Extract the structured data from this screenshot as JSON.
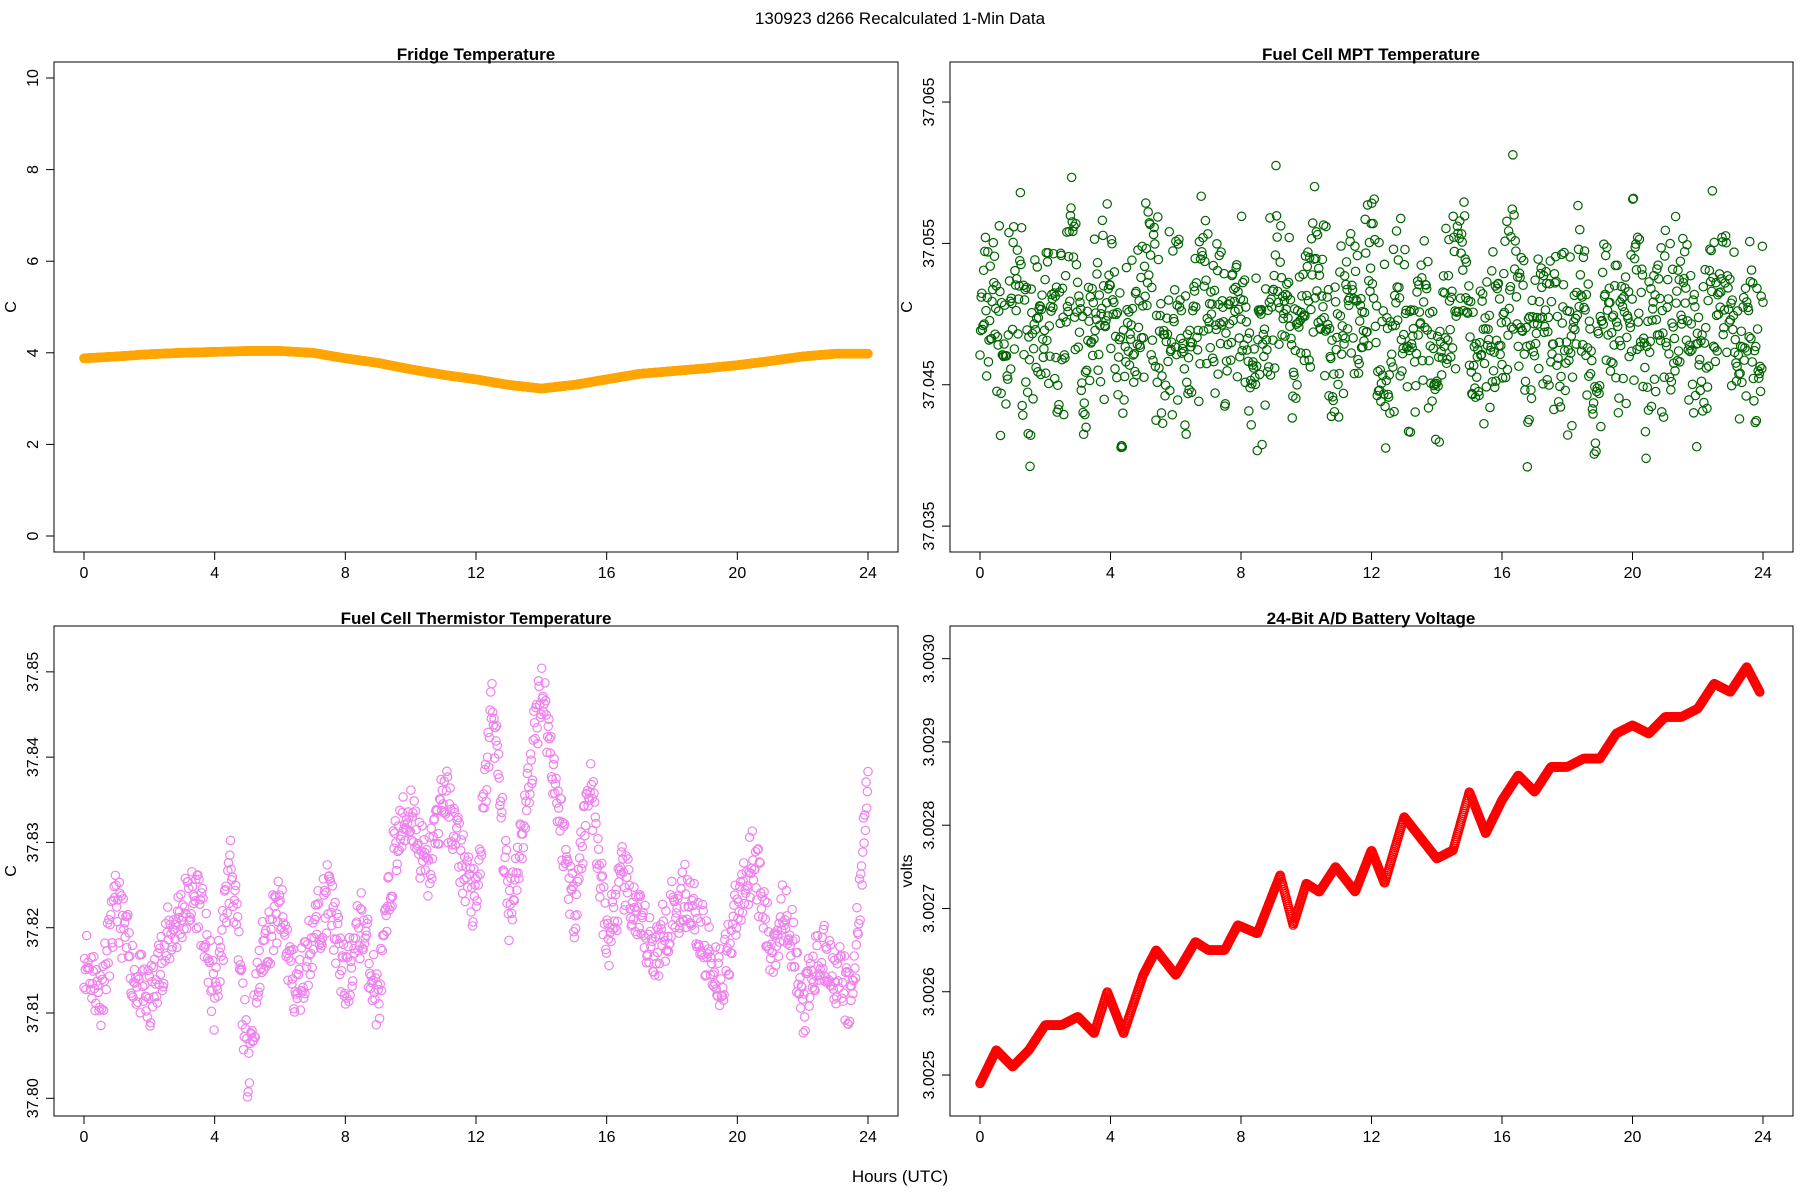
{
  "figure": {
    "main_title": "130923   d266   Recalculated 1-Min Data",
    "xlabel": "Hours (UTC)"
  },
  "chart_data": [
    {
      "type": "scatter",
      "title": "Fridge Temperature",
      "ylabel": "C",
      "xlabel": "",
      "color": "#ffa500",
      "marker": "circle-open",
      "xlim": [
        0,
        24
      ],
      "ylim": [
        0,
        10
      ],
      "x_ticks": [
        0,
        4,
        8,
        12,
        16,
        20,
        24
      ],
      "x_tick_labels": [
        "0",
        "4",
        "8",
        "12",
        "16",
        "20",
        "24"
      ],
      "y_ticks": [
        0,
        2,
        4,
        6,
        8,
        10
      ],
      "y_tick_labels": [
        "0",
        "2",
        "4",
        "6",
        "8",
        "10"
      ],
      "series": [
        {
          "x": [
            0,
            1,
            2,
            3,
            4,
            5,
            6,
            7,
            8,
            9,
            10,
            11,
            12,
            13,
            14,
            15,
            16,
            17,
            18,
            19,
            20,
            21,
            22,
            23,
            24
          ],
          "y": [
            3.88,
            3.92,
            3.97,
            4.0,
            4.02,
            4.04,
            4.04,
            4.0,
            3.88,
            3.78,
            3.64,
            3.52,
            3.42,
            3.3,
            3.22,
            3.3,
            3.42,
            3.54,
            3.6,
            3.66,
            3.73,
            3.82,
            3.92,
            3.98,
            3.98
          ]
        }
      ]
    },
    {
      "type": "scatter",
      "title": "Fuel Cell MPT Temperature",
      "ylabel": "C",
      "xlabel": "",
      "color": "#006400",
      "marker": "circle-open",
      "xlim": [
        0,
        24
      ],
      "ylim": [
        37.0343,
        37.0667
      ],
      "x_ticks": [
        0,
        4,
        8,
        12,
        16,
        20,
        24
      ],
      "x_tick_labels": [
        "0",
        "4",
        "8",
        "12",
        "16",
        "20",
        "24"
      ],
      "y_ticks": [
        37.035,
        37.045,
        37.055,
        37.065
      ],
      "y_tick_labels": [
        "37.035",
        "37.045",
        "37.055",
        "37.065"
      ],
      "series": [
        {
          "x": [
            0.0,
            0.4,
            0.8,
            1.2,
            1.6,
            2.0,
            2.4,
            2.8,
            3.2,
            3.6,
            4.0,
            4.4,
            4.8,
            5.2,
            5.6,
            6.0,
            6.4,
            6.8,
            7.2,
            7.6,
            8.0,
            8.4,
            8.8,
            9.2,
            9.6,
            10.0,
            10.4,
            10.8,
            11.2,
            11.6,
            12.0,
            12.4,
            12.8,
            13.2,
            13.6,
            14.0,
            14.4,
            14.8,
            15.2,
            15.6,
            16.0,
            16.4,
            16.8,
            17.2,
            17.6,
            18.0,
            18.4,
            18.8,
            19.2,
            19.6,
            20.0,
            20.4,
            20.8,
            21.2,
            21.6,
            22.0,
            22.4,
            22.8,
            23.2,
            23.6,
            24.0
          ],
          "y": [
            37.0489,
            37.0512,
            37.0467,
            37.0531,
            37.0452,
            37.0505,
            37.0478,
            37.0543,
            37.0461,
            37.0497,
            37.0522,
            37.0448,
            37.0509,
            37.0536,
            37.0472,
            37.0501,
            37.0458,
            37.0527,
            37.0494,
            37.0481,
            37.0515,
            37.0442,
            37.0507,
            37.0533,
            37.0469,
            37.0498,
            37.0524,
            37.0455,
            37.0511,
            37.0486,
            37.0539,
            37.0463,
            37.0502,
            37.0477,
            37.0519,
            37.0451,
            37.0495,
            37.0528,
            37.0466,
            37.0504,
            37.0482,
            37.0537,
            37.0459,
            37.0513,
            37.0491,
            37.0474,
            37.0526,
            37.0449,
            37.0508,
            37.0485,
            37.0532,
            37.0464,
            37.0499,
            37.0476,
            37.0518,
            37.0457,
            37.0503,
            37.0529,
            37.0471,
            37.0492,
            37.0483
          ]
        }
      ]
    },
    {
      "type": "scatter",
      "title": "Fuel Cell Thermistor Temperature",
      "ylabel": "C",
      "xlabel": "",
      "color": "#ee82ee",
      "marker": "circle-open",
      "xlim": [
        0,
        24
      ],
      "ylim": [
        37.7998,
        37.8535
      ],
      "x_ticks": [
        0,
        4,
        8,
        12,
        16,
        20,
        24
      ],
      "x_tick_labels": [
        "0",
        "4",
        "8",
        "12",
        "16",
        "20",
        "24"
      ],
      "y_ticks": [
        37.8,
        37.81,
        37.82,
        37.83,
        37.84,
        37.85
      ],
      "y_tick_labels": [
        "37.80",
        "37.81",
        "37.82",
        "37.83",
        "37.84",
        "37.85"
      ],
      "series": [
        {
          "x": [
            0.0,
            0.5,
            1.0,
            1.5,
            2.0,
            2.5,
            3.0,
            3.5,
            4.0,
            4.5,
            5.0,
            5.5,
            6.0,
            6.5,
            7.0,
            7.5,
            8.0,
            8.5,
            9.0,
            9.5,
            10.0,
            10.5,
            11.0,
            11.5,
            12.0,
            12.5,
            13.0,
            13.5,
            14.0,
            14.5,
            15.0,
            15.5,
            16.0,
            16.5,
            17.0,
            17.5,
            18.0,
            18.5,
            19.0,
            19.5,
            20.0,
            20.5,
            21.0,
            21.5,
            22.0,
            22.5,
            23.0,
            23.5,
            24.0
          ],
          "y": [
            37.817,
            37.812,
            37.823,
            37.815,
            37.811,
            37.818,
            37.822,
            37.824,
            37.811,
            37.828,
            37.804,
            37.818,
            37.822,
            37.812,
            37.819,
            37.824,
            37.813,
            37.821,
            37.811,
            37.829,
            37.834,
            37.826,
            37.836,
            37.829,
            37.822,
            37.847,
            37.822,
            37.833,
            37.849,
            37.835,
            37.822,
            37.838,
            37.818,
            37.826,
            37.82,
            37.817,
            37.822,
            37.824,
            37.818,
            37.814,
            37.822,
            37.829,
            37.817,
            37.823,
            37.81,
            37.817,
            37.815,
            37.811,
            37.837
          ]
        }
      ]
    },
    {
      "type": "scatter",
      "title": "24-Bit A/D Battery Voltage",
      "ylabel": "volts",
      "xlabel": "",
      "color": "#ff0000",
      "marker": "circle-open",
      "xlim": [
        0,
        24
      ],
      "ylim": [
        3.00247,
        3.00302
      ],
      "x_ticks": [
        0,
        4,
        8,
        12,
        16,
        20,
        24
      ],
      "x_tick_labels": [
        "0",
        "4",
        "8",
        "12",
        "16",
        "20",
        "24"
      ],
      "y_ticks": [
        3.0025,
        3.0026,
        3.0027,
        3.0028,
        3.0029,
        3.003
      ],
      "y_tick_labels": [
        "3.0025",
        "3.0026",
        "3.0027",
        "3.0028",
        "3.0029",
        "3.0030"
      ],
      "series": [
        {
          "x": [
            0.0,
            0.5,
            1.0,
            1.5,
            2.0,
            2.5,
            3.0,
            3.5,
            3.9,
            4.4,
            5.0,
            5.4,
            6.0,
            6.6,
            7.0,
            7.5,
            7.9,
            8.5,
            9.2,
            9.6,
            10.0,
            10.4,
            10.9,
            11.5,
            12.0,
            12.4,
            13.0,
            13.4,
            14.0,
            14.5,
            15.0,
            15.5,
            16.0,
            16.5,
            17.0,
            17.5,
            18.0,
            18.5,
            19.0,
            19.5,
            20.0,
            20.5,
            21.0,
            21.5,
            22.0,
            22.5,
            23.0,
            23.5,
            23.9
          ],
          "y": [
            3.00249,
            3.00253,
            3.00251,
            3.00253,
            3.00256,
            3.00256,
            3.00257,
            3.00255,
            3.0026,
            3.00255,
            3.00262,
            3.00265,
            3.00262,
            3.00266,
            3.00265,
            3.00265,
            3.00268,
            3.00267,
            3.00274,
            3.00268,
            3.00273,
            3.00272,
            3.00275,
            3.00272,
            3.00277,
            3.00273,
            3.00281,
            3.00279,
            3.00276,
            3.00277,
            3.00284,
            3.00279,
            3.00283,
            3.00286,
            3.00284,
            3.00287,
            3.00287,
            3.00288,
            3.00288,
            3.00291,
            3.00292,
            3.00291,
            3.00293,
            3.00293,
            3.00294,
            3.00297,
            3.00296,
            3.00299,
            3.00296
          ]
        }
      ]
    }
  ]
}
